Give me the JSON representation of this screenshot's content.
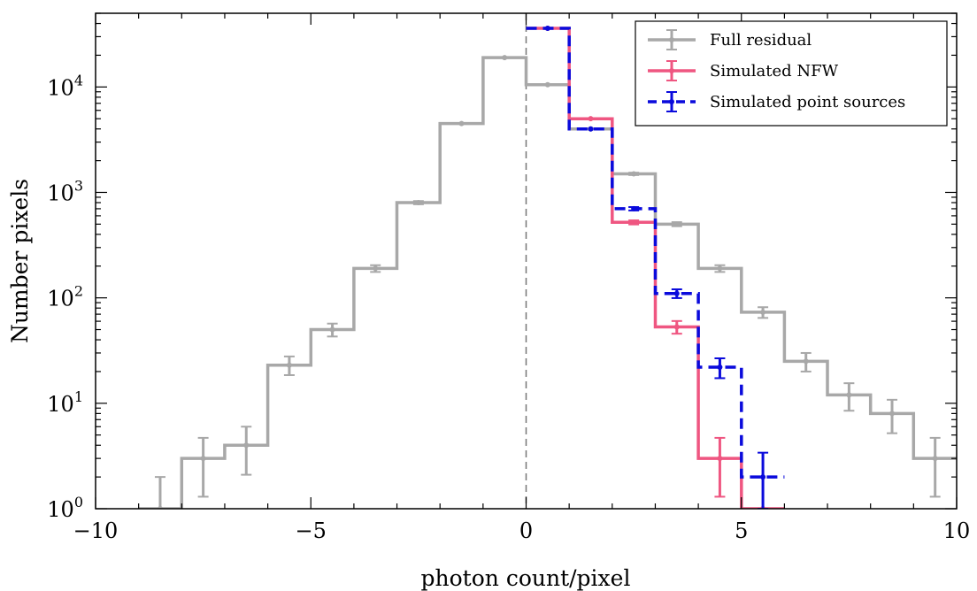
{
  "chart_data": {
    "type": "line",
    "title": "",
    "xlabel": "photon count/pixel",
    "ylabel": "Number pixels",
    "xlim": [
      -10,
      10
    ],
    "ylim": [
      1,
      50000
    ],
    "yscale": "log",
    "xticks": [
      -10,
      -5,
      0,
      5,
      10
    ],
    "xtick_labels": [
      "−10",
      "−5",
      "0",
      "5",
      "10"
    ],
    "yticks": [
      1,
      10,
      100,
      1000,
      10000
    ],
    "ytick_labels": [
      {
        "base": "10",
        "exp": "0"
      },
      {
        "base": "10",
        "exp": "1"
      },
      {
        "base": "10",
        "exp": "2"
      },
      {
        "base": "10",
        "exp": "3"
      },
      {
        "base": "10",
        "exp": "4"
      }
    ],
    "vline_x": 0,
    "legend_position": "top-right",
    "grid": false,
    "series": [
      {
        "name": "Full residual",
        "color": "#a8a8a8",
        "dashed": false,
        "bin_edges": [
          -9,
          -8,
          -7,
          -6,
          -5,
          -4,
          -3,
          -2,
          -1,
          0,
          1,
          2,
          3,
          4,
          5,
          6,
          7,
          8,
          9,
          10
        ],
        "values": [
          1,
          3,
          4,
          23,
          50,
          190,
          800,
          4500,
          19000,
          10500,
          4000,
          1500,
          500,
          190,
          73,
          25,
          12,
          8,
          3
        ],
        "err_low": [
          0.93,
          1.7,
          1.9,
          4.5,
          7,
          14,
          28,
          67,
          138,
          102,
          63,
          39,
          22,
          14,
          8.5,
          5,
          3.5,
          2.8,
          1.7
        ],
        "err_high": [
          1.0,
          1.7,
          2.0,
          4.8,
          7,
          14,
          28,
          67,
          138,
          102,
          63,
          39,
          22,
          14,
          8.5,
          5,
          3.5,
          2.8,
          1.7
        ]
      },
      {
        "name": "Simulated NFW",
        "color": "#ef5681",
        "dashed": false,
        "bin_edges": [
          0,
          1,
          2,
          3,
          4,
          5,
          6
        ],
        "values": [
          36000,
          5000,
          520,
          53,
          3,
          1
        ],
        "err_low": [
          190,
          70,
          23,
          7.3,
          1.7,
          0
        ],
        "err_high": [
          190,
          70,
          23,
          7.3,
          1.7,
          0
        ]
      },
      {
        "name": "Simulated point sources",
        "color": "#0a0adc",
        "dashed": true,
        "bin_edges": [
          0,
          1,
          2,
          3,
          4,
          5,
          6
        ],
        "values": [
          36000,
          4000,
          700,
          110,
          22,
          2
        ],
        "err_low": [
          190,
          63,
          26,
          10.5,
          4.7,
          1.4
        ],
        "err_high": [
          190,
          63,
          26,
          10.5,
          4.7,
          1.4
        ]
      }
    ]
  }
}
